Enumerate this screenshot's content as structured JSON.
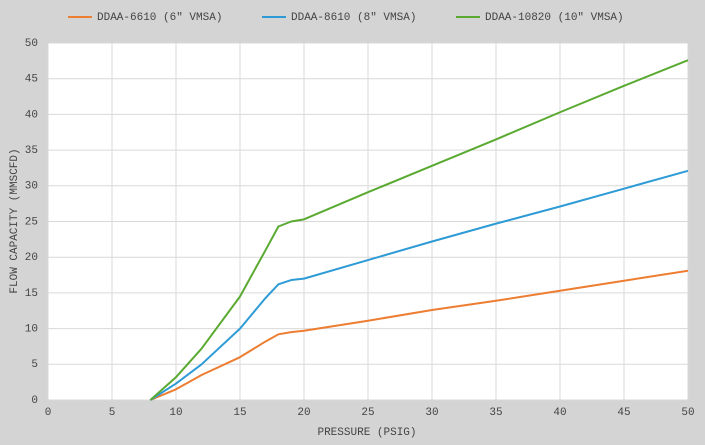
{
  "chart_data": {
    "type": "line",
    "x_label": "PRESSURE (PSIG)",
    "y_label": "FLOW CAPACITY (MMSCFD)",
    "x": [
      8,
      10,
      12,
      15,
      17,
      18,
      19,
      20,
      25,
      30,
      35,
      40,
      45,
      50
    ],
    "series": [
      {
        "name": "DDAA-6610 (6\" VMSA)",
        "color": "#ed7d31",
        "values": [
          0,
          1.5,
          3.5,
          6,
          8.2,
          9.2,
          9.5,
          9.7,
          11.1,
          12.6,
          13.9,
          15.3,
          16.7,
          18.1
        ]
      },
      {
        "name": "DDAA-8610 (8\" VMSA)",
        "color": "#2e9bd6",
        "values": [
          0,
          2.3,
          5,
          10,
          14.3,
          16.2,
          16.8,
          17,
          19.6,
          22.2,
          24.7,
          27.1,
          29.6,
          32.1
        ]
      },
      {
        "name": "DDAA-10820 (10\" VMSA)",
        "color": "#5aaa32",
        "values": [
          0,
          3.2,
          7.2,
          14.5,
          21,
          24.3,
          25,
          25.3,
          29.1,
          32.8,
          36.5,
          40.3,
          44,
          47.6
        ]
      }
    ],
    "xlim": [
      0,
      50
    ],
    "xticks": [
      0,
      5,
      10,
      15,
      20,
      25,
      30,
      35,
      40,
      45,
      50
    ],
    "ylim": [
      0,
      50
    ],
    "yticks": [
      0,
      5,
      10,
      15,
      20,
      25,
      30,
      35,
      40,
      45,
      50
    ],
    "grid": true,
    "legend": "top"
  }
}
